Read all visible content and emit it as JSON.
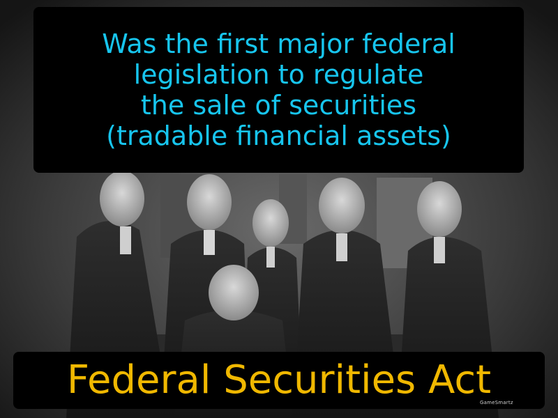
{
  "definition": {
    "lines": [
      "Was the first major federal",
      "legislation to regulate",
      "the sale of securities",
      "(tradable financial assets)"
    ]
  },
  "term": "Federal Securities Act",
  "brand": "GameSmartz",
  "colors": {
    "definition_text": "#17c5ee",
    "term_text": "#f0b800",
    "box_background": "#000000"
  }
}
